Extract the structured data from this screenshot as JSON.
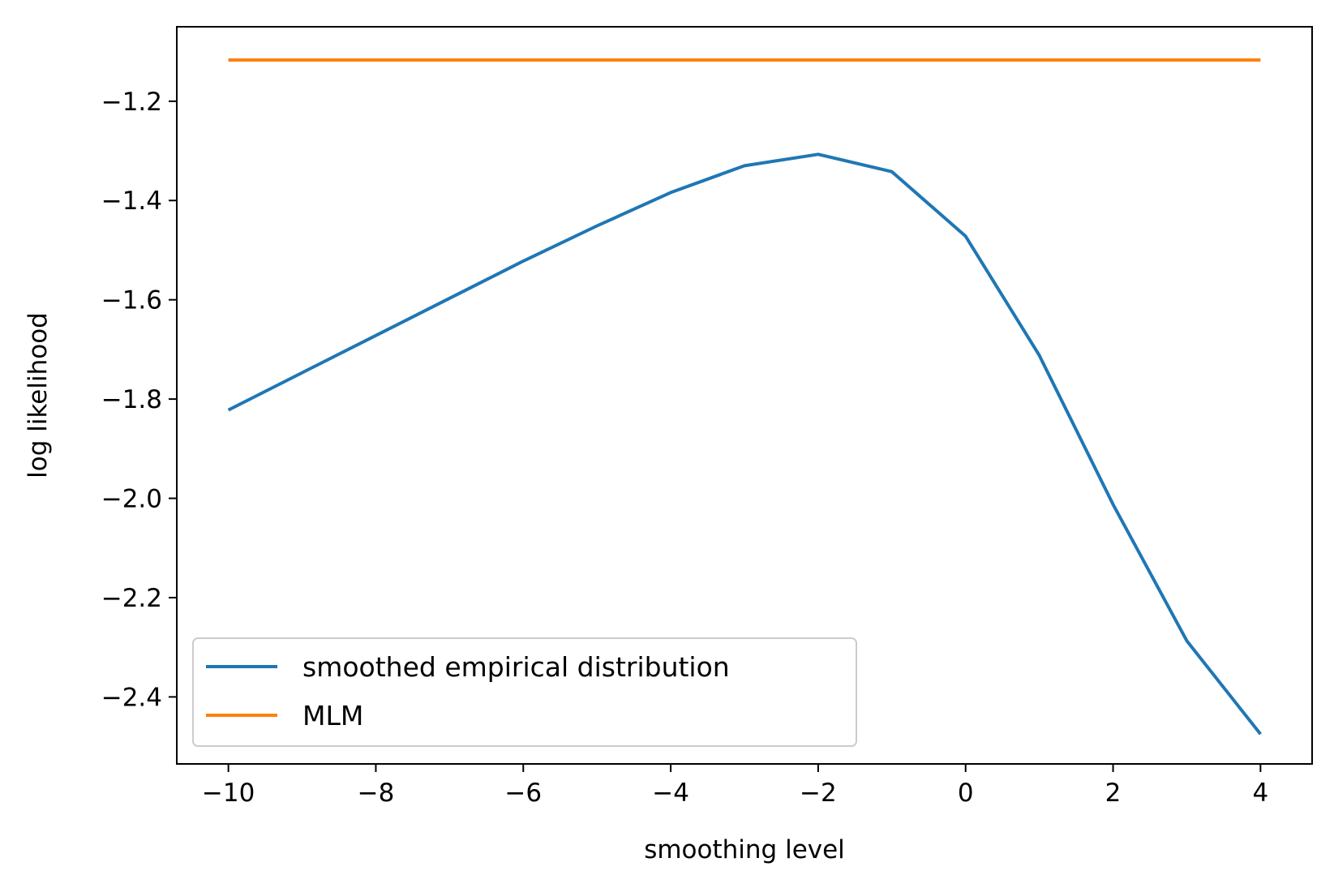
{
  "chart_data": {
    "type": "line",
    "title": "",
    "xlabel": "smoothing level",
    "ylabel": "log likelihood",
    "xlim": [
      -10.7,
      4.7
    ],
    "ylim": [
      -2.535,
      -1.05
    ],
    "xticks": [
      -10,
      -8,
      -6,
      -4,
      -2,
      0,
      2,
      4
    ],
    "xtick_labels": [
      "−10",
      "−8",
      "−6",
      "−4",
      "−2",
      "0",
      "2",
      "4"
    ],
    "yticks": [
      -2.4,
      -2.2,
      -2.0,
      -1.8,
      -1.6,
      -1.4,
      -1.2
    ],
    "ytick_labels": [
      "−2.4",
      "−2.2",
      "−2.0",
      "−1.8",
      "−1.6",
      "−1.4",
      "−1.2"
    ],
    "grid": false,
    "legend_position": "lower-left",
    "x": [
      -10,
      -9,
      -8,
      -7,
      -6,
      -5,
      -4,
      -3,
      -2,
      -1,
      0,
      1,
      2,
      3,
      4
    ],
    "series": [
      {
        "name": "smoothed empirical distribution",
        "color": "#1f77b4",
        "values": [
          -1.822,
          -1.747,
          -1.672,
          -1.597,
          -1.522,
          -1.451,
          -1.384,
          -1.33,
          -1.307,
          -1.342,
          -1.472,
          -1.712,
          -2.012,
          -2.287,
          -2.475
        ]
      },
      {
        "name": "MLM",
        "color": "#ff7f0e",
        "values": [
          -1.117,
          -1.117,
          -1.117,
          -1.117,
          -1.117,
          -1.117,
          -1.117,
          -1.117,
          -1.117,
          -1.117,
          -1.117,
          -1.117,
          -1.117,
          -1.117,
          -1.117
        ]
      }
    ]
  }
}
